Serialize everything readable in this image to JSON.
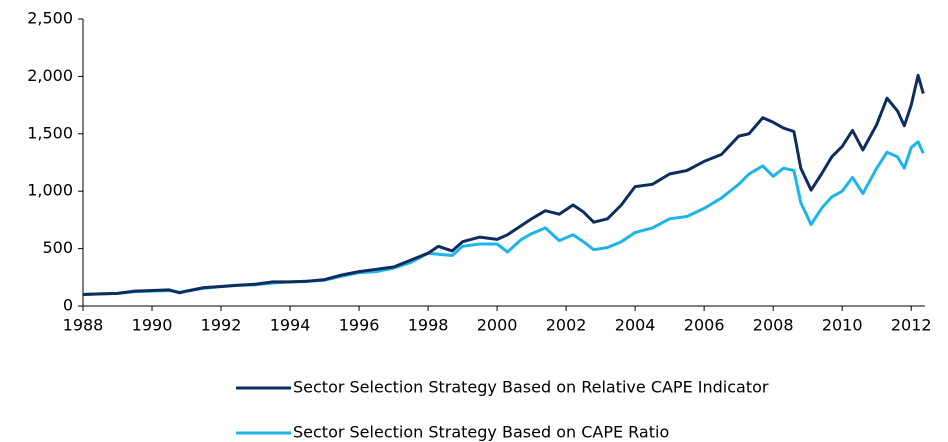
{
  "chart_data": {
    "type": "line",
    "x": [
      1988,
      1988.5,
      1989,
      1989.5,
      1990,
      1990.5,
      1990.8,
      1991,
      1991.5,
      1992,
      1992.5,
      1993,
      1993.5,
      1994,
      1994.5,
      1995,
      1995.5,
      1996,
      1996.5,
      1997,
      1997.5,
      1998,
      1998.3,
      1998.7,
      1999,
      1999.5,
      2000,
      2000.3,
      2000.7,
      2001,
      2001.4,
      2001.8,
      2002.2,
      2002.5,
      2002.8,
      2003.2,
      2003.6,
      2004,
      2004.5,
      2005,
      2005.5,
      2006,
      2006.5,
      2007,
      2007.3,
      2007.7,
      2008,
      2008.3,
      2008.6,
      2008.8,
      2009.1,
      2009.4,
      2009.7,
      2010,
      2010.3,
      2010.6,
      2011,
      2011.3,
      2011.6,
      2011.8,
      2012,
      2012.2,
      2012.35
    ],
    "series": [
      {
        "name": "Sector Selection Strategy Based on Relative CAPE Indicator",
        "color": "#0d2d5e",
        "values": [
          100,
          105,
          110,
          130,
          135,
          140,
          115,
          130,
          160,
          170,
          180,
          190,
          210,
          210,
          215,
          230,
          270,
          300,
          320,
          340,
          400,
          460,
          520,
          480,
          560,
          600,
          580,
          620,
          700,
          760,
          830,
          800,
          880,
          820,
          730,
          760,
          880,
          1040,
          1060,
          1150,
          1180,
          1260,
          1320,
          1480,
          1500,
          1640,
          1600,
          1550,
          1520,
          1200,
          1010,
          1150,
          1300,
          1390,
          1530,
          1360,
          1580,
          1810,
          1700,
          1570,
          1750,
          2010,
          1850
        ]
      },
      {
        "name": "Sector Selection Strategy Based on CAPE Ratio",
        "color": "#1db4ea",
        "values": [
          100,
          105,
          110,
          125,
          130,
          135,
          120,
          130,
          155,
          170,
          180,
          185,
          200,
          210,
          215,
          225,
          260,
          290,
          300,
          330,
          380,
          460,
          450,
          440,
          520,
          540,
          540,
          470,
          580,
          630,
          680,
          570,
          620,
          560,
          490,
          510,
          560,
          640,
          680,
          760,
          780,
          850,
          940,
          1060,
          1150,
          1220,
          1130,
          1200,
          1180,
          900,
          710,
          850,
          950,
          1000,
          1120,
          980,
          1200,
          1340,
          1300,
          1200,
          1380,
          1430,
          1330
        ]
      }
    ],
    "xlim": [
      1988,
      2012.4
    ],
    "xticks": [
      1988,
      1990,
      1992,
      1994,
      1996,
      1998,
      2000,
      2002,
      2004,
      2006,
      2008,
      2010,
      2012
    ],
    "ylim": [
      0,
      2500
    ],
    "yticks": [
      0,
      500,
      {
        "value": 1000,
        "label": "1,000"
      },
      {
        "value": 1500,
        "label": "1,500"
      },
      {
        "value": 2000,
        "label": "2,000"
      },
      {
        "value": 2500,
        "label": "2,500"
      }
    ]
  }
}
